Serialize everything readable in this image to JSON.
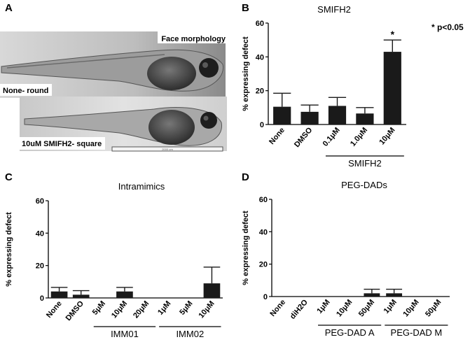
{
  "panel_labels": {
    "a": "A",
    "b": "B",
    "c": "C",
    "d": "D"
  },
  "significance_note": "* p<0.05",
  "photo": {
    "face_morphology": "Face morphology",
    "none_label": "None- round",
    "treated_label": "10uM SMIFH2- square",
    "scale_text": "2000 um"
  },
  "colors": {
    "bar": "#1a1a1a",
    "axis": "#000000"
  },
  "chart_data": [
    {
      "type": "bar",
      "title": "SMIFH2",
      "ylabel": "% expressing defect",
      "ylim": [
        0,
        60
      ],
      "yticks": [
        "0",
        "20",
        "40",
        "60"
      ],
      "categories": [
        "None",
        "DMSO",
        "0.1μM",
        "1.0μM",
        "10μM"
      ],
      "values": [
        10.5,
        7.5,
        11,
        6.5,
        43
      ],
      "errors": [
        8,
        4,
        5,
        3.5,
        7
      ],
      "annotations": [
        {
          "index": 4,
          "text": "*"
        }
      ],
      "groups": [
        {
          "label": "SMIFH2",
          "from": 2,
          "to": 4
        }
      ]
    },
    {
      "type": "bar",
      "title": "Intramimics",
      "ylabel": "% expressing defect",
      "ylim": [
        0,
        60
      ],
      "yticks": [
        "0",
        "20",
        "40",
        "60"
      ],
      "categories": [
        "None",
        "DMSO",
        "5μM",
        "10μM",
        "20μM",
        "1μM",
        "5μM",
        "10μM"
      ],
      "values": [
        4,
        2,
        0,
        4,
        0,
        0,
        0,
        9
      ],
      "errors": [
        2.5,
        2.5,
        0,
        2.5,
        0,
        0,
        0,
        10
      ],
      "groups": [
        {
          "label": "IMM01",
          "from": 2,
          "to": 4
        },
        {
          "label": "IMM02",
          "from": 5,
          "to": 7
        }
      ]
    },
    {
      "type": "bar",
      "title": "PEG-DADs",
      "ylabel": "% expressing defect",
      "ylim": [
        0,
        60
      ],
      "yticks": [
        "0",
        "20",
        "40",
        "60"
      ],
      "categories": [
        "None",
        "diH2O",
        "1μM",
        "10μM",
        "50μM",
        "1μM",
        "10μM",
        "50μM"
      ],
      "values": [
        0,
        0,
        0,
        0,
        2,
        2,
        0,
        0
      ],
      "errors": [
        0,
        0,
        0,
        0,
        2.5,
        2.5,
        0,
        0
      ],
      "groups": [
        {
          "label": "PEG-DAD A",
          "from": 2,
          "to": 4
        },
        {
          "label": "PEG-DAD M",
          "from": 5,
          "to": 7
        }
      ]
    }
  ]
}
